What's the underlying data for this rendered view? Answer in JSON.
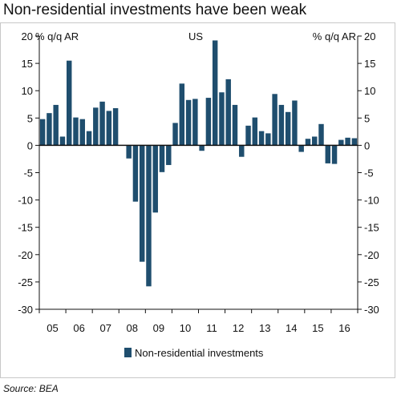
{
  "title": "Non-residential investments have been weak",
  "source": "Source: BEA",
  "chart_data": {
    "type": "bar",
    "region_label": "US",
    "ylabel_left": "% q/q AR",
    "ylabel_right": "% q/q AR",
    "ylim": [
      -30,
      20
    ],
    "yticks": [
      20,
      15,
      10,
      5,
      0,
      -5,
      -10,
      -15,
      -20,
      -25,
      -30
    ],
    "year_labels": [
      "05",
      "06",
      "07",
      "08",
      "09",
      "10",
      "11",
      "12",
      "13",
      "14",
      "15",
      "16"
    ],
    "start_year_label": "05",
    "bar_color": "#1f4e6e",
    "legend": [
      "Non-residential investments"
    ],
    "series": [
      {
        "name": "Non-residential investments",
        "values": [
          4.8,
          5.9,
          7.4,
          1.6,
          15.5,
          5.1,
          4.8,
          2.6,
          6.9,
          8.0,
          6.3,
          6.8,
          0.0,
          -2.4,
          -10.3,
          -21.3,
          -25.8,
          -12.3,
          -4.9,
          -3.6,
          4.1,
          11.3,
          8.3,
          8.5,
          -1.0,
          8.7,
          19.2,
          9.7,
          12.1,
          7.4,
          -2.1,
          3.6,
          5.1,
          2.6,
          2.2,
          9.4,
          7.4,
          6.1,
          8.2,
          -1.2,
          1.2,
          1.6,
          3.9,
          -3.3,
          -3.4,
          1.0,
          1.4,
          1.3
        ]
      }
    ]
  }
}
